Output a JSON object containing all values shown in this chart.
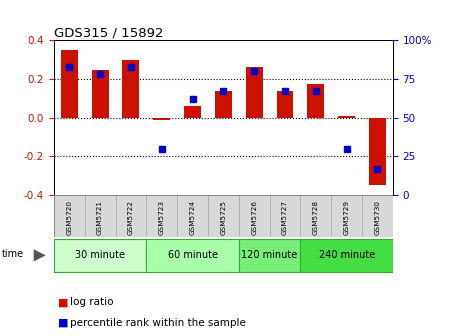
{
  "title": "GDS315 / 15892",
  "samples": [
    "GSM5720",
    "GSM5721",
    "GSM5722",
    "GSM5723",
    "GSM5724",
    "GSM5725",
    "GSM5726",
    "GSM5727",
    "GSM5728",
    "GSM5729",
    "GSM5730"
  ],
  "log_ratio": [
    0.35,
    0.245,
    0.3,
    -0.01,
    0.062,
    0.14,
    0.26,
    0.14,
    0.175,
    0.01,
    -0.35
  ],
  "percentile": [
    83,
    78,
    83,
    30,
    62,
    67,
    80,
    67,
    67,
    30,
    17
  ],
  "bar_color": "#cc1100",
  "pct_color": "#0000cc",
  "ylim": [
    -0.4,
    0.4
  ],
  "yticks_left": [
    -0.4,
    -0.2,
    0.0,
    0.2,
    0.4
  ],
  "yticks_right": [
    0,
    25,
    50,
    75,
    100
  ],
  "groups": [
    {
      "label": "30 minute",
      "start": 0,
      "end": 2,
      "color": "#ccffcc"
    },
    {
      "label": "60 minute",
      "start": 3,
      "end": 5,
      "color": "#aaffaa"
    },
    {
      "label": "120 minute",
      "start": 6,
      "end": 7,
      "color": "#77ee77"
    },
    {
      "label": "240 minute",
      "start": 8,
      "end": 10,
      "color": "#44dd44"
    }
  ],
  "time_label": "time",
  "legend_log": "log ratio",
  "legend_pct": "percentile rank within the sample",
  "bg_color": "#ffffff",
  "bar_color_hex": "#cc1100",
  "pct_color_hex": "#0000cc",
  "tick_color_left": "#cc1100",
  "tick_color_right": "#0000cc",
  "gsm_bg": "#d8d8d8",
  "gsm_border": "#aaaaaa"
}
